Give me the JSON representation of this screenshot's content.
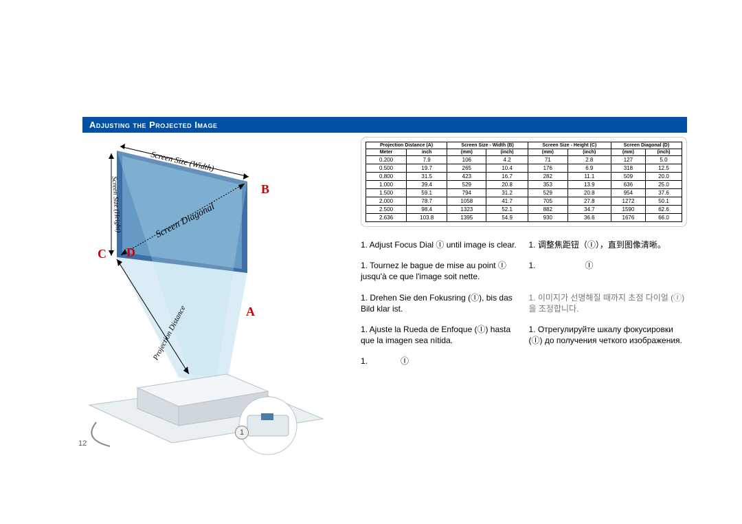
{
  "title": "Adjusting the Projected Image",
  "diagram": {
    "markers": {
      "A": "A",
      "B": "B",
      "C": "C",
      "D": "D"
    },
    "labels": {
      "width": "Screen Size (Width)",
      "height": "Screen Size (Height)",
      "diagonal": "Screen Diagonal",
      "projection": "Projection Distance"
    },
    "colors": {
      "screen_dark": "#3e6ea3",
      "screen_light": "#7fb8d9",
      "beam": "#cde6f2",
      "marker_red": "#d20000",
      "projector_body": "#dfe5e8",
      "projector_shadow": "#b8c2c9"
    },
    "page_number": "12",
    "focus_label": "1"
  },
  "table": {
    "headers": {
      "A": "Projection Distance (A)",
      "B": "Screen Size - Width (B)",
      "C": "Screen Size - Height (C)",
      "D": "Screen Diagonal (D)"
    },
    "subheaders": [
      "Meter",
      "inch",
      "(mm)",
      "(inch)",
      "(mm)",
      "(inch)",
      "(mm)",
      "(inch)"
    ],
    "rows": [
      [
        "0.200",
        "7.9",
        "106",
        "4.2",
        "71",
        "2.8",
        "127",
        "5.0"
      ],
      [
        "0.500",
        "19.7",
        "265",
        "10.4",
        "176",
        "6.9",
        "318",
        "12.5"
      ],
      [
        "0.800",
        "31.5",
        "423",
        "16.7",
        "282",
        "11.1",
        "509",
        "20.0"
      ],
      [
        "1.000",
        "39.4",
        "529",
        "20.8",
        "353",
        "13.9",
        "636",
        "25.0"
      ],
      [
        "1.500",
        "59.1",
        "794",
        "31.2",
        "529",
        "20.8",
        "954",
        "37.6"
      ],
      [
        "2.000",
        "78.7",
        "1058",
        "41.7",
        "705",
        "27.8",
        "1272",
        "50.1"
      ],
      [
        "2.500",
        "98.4",
        "1323",
        "52.1",
        "882",
        "34.7",
        "1590",
        "62.6"
      ],
      [
        "2.636",
        "103.8",
        "1395",
        "54.9",
        "930",
        "36.6",
        "1676",
        "66.0"
      ]
    ],
    "border_color": "#000000",
    "font_size": 8
  },
  "instructions": {
    "en": "1. Adjust Focus Dial Ⓘ until image is clear.",
    "zh": "1. 调整焦距钮（Ⓘ），直到图像清晰。",
    "fr": "1. Tournez le bague de mise au point Ⓘ jusqu'à ce que l'image soit nette.",
    "ja": "1.　　　　　　Ⓘ",
    "de": "1. Drehen Sie den Fokusring (Ⓘ), bis das Bild klar ist.",
    "ko": "1. 이미지가 선명해질 때까지 초점 다이얼 (Ⓘ) 을 조정합니다.",
    "es": "1. Ajuste la Rueda de Enfoque (Ⓘ) hasta que la imagen sea nítida.",
    "ru": "1. Отрегулируйте шкалу фокусировки (Ⓘ) до получения четкого изображения.",
    "ar": "1.　　　　Ⓘ"
  }
}
